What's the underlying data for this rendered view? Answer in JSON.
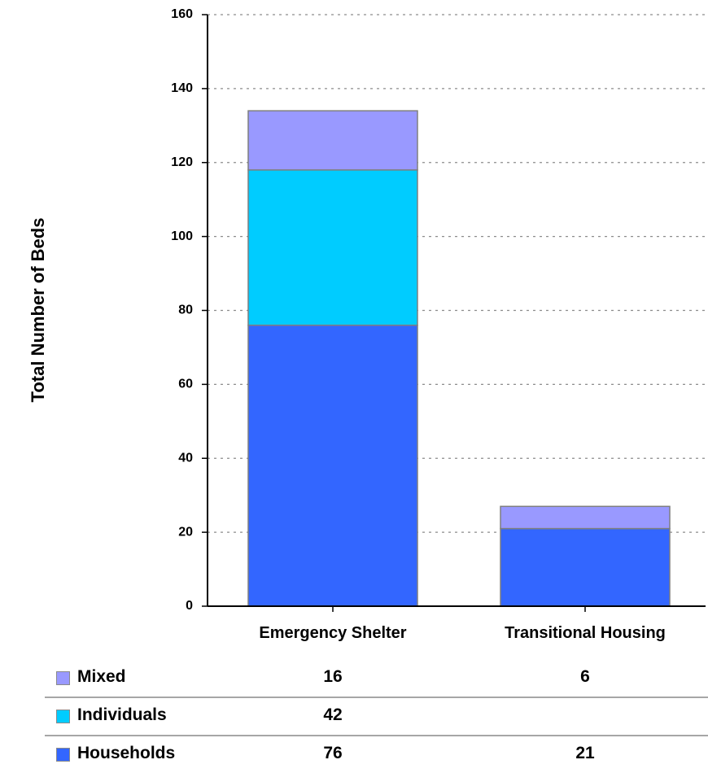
{
  "chart_data": {
    "type": "bar",
    "stacked": true,
    "categories": [
      "Emergency Shelter",
      "Transitional Housing"
    ],
    "series": [
      {
        "name": "Households",
        "values": [
          76,
          21
        ],
        "color": "#3366ff"
      },
      {
        "name": "Individuals",
        "values": [
          42,
          null
        ],
        "color": "#00ccff"
      },
      {
        "name": "Mixed",
        "values": [
          16,
          6
        ],
        "color": "#9999ff"
      }
    ],
    "ylabel": "Total Number of Beds",
    "xlabel": "",
    "ylim": [
      0,
      160
    ],
    "yticks": [
      0,
      20,
      40,
      60,
      80,
      100,
      120,
      140,
      160
    ],
    "grid": true,
    "legend": "data-table-below"
  },
  "data_table": {
    "rows": [
      {
        "label": "Mixed",
        "color": "#9999ff",
        "cells": [
          "16",
          "6"
        ]
      },
      {
        "label": "Individuals",
        "color": "#00ccff",
        "cells": [
          "42",
          ""
        ]
      },
      {
        "label": "Households",
        "color": "#3366ff",
        "cells": [
          "76",
          "21"
        ]
      }
    ]
  }
}
